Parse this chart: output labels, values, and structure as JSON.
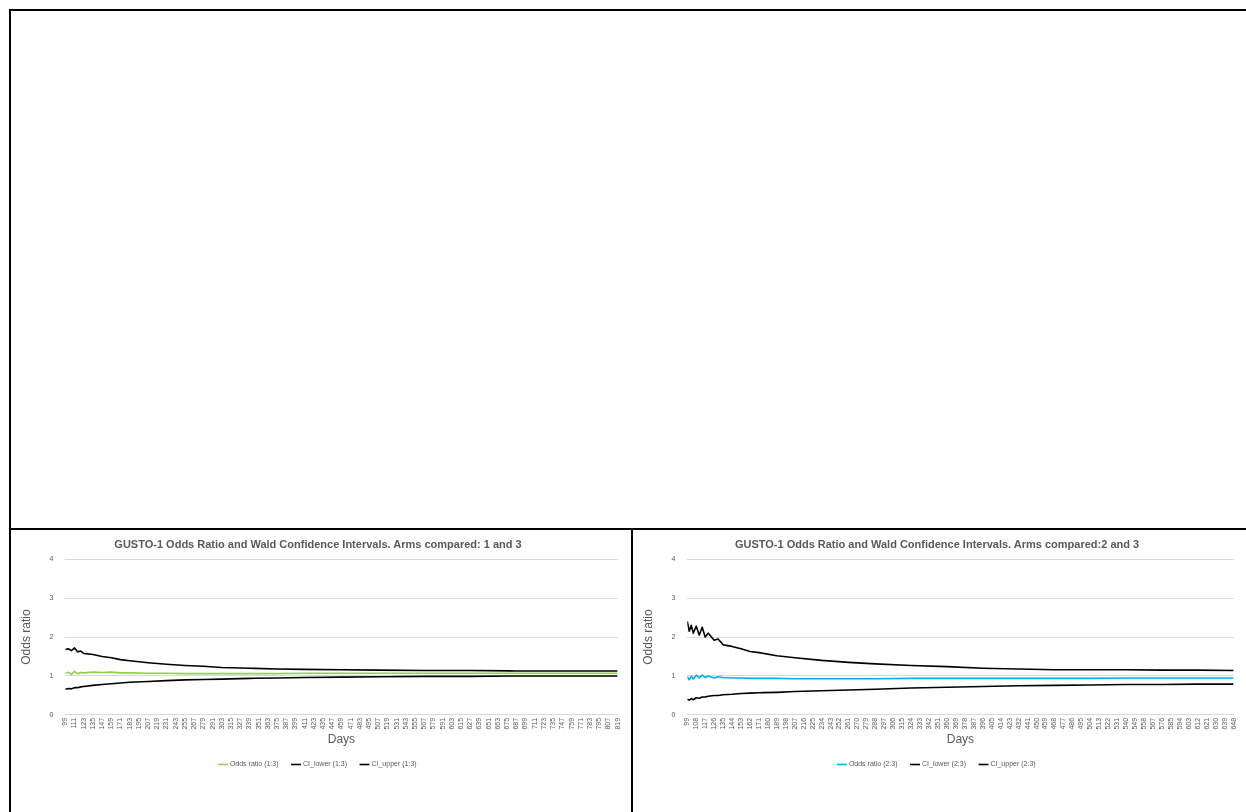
{
  "chart_data": [
    {
      "type": "line",
      "title": "GUSTO-1 Odds Ratio and Wald Confidence Intervals. Arms compared: 1 and 3",
      "xlabel": "Days",
      "ylabel": "Odds ratio",
      "grid": "y",
      "legend": "bottom",
      "marker": "none",
      "ylim": [
        0,
        4
      ],
      "yticks": [
        0,
        1,
        2,
        3,
        4
      ],
      "xlim": [
        99,
        819
      ],
      "xticks": [
        99,
        111,
        123,
        135,
        147,
        159,
        171,
        183,
        195,
        207,
        219,
        231,
        243,
        255,
        267,
        279,
        291,
        303,
        315,
        327,
        339,
        351,
        363,
        375,
        387,
        399,
        411,
        423,
        435,
        447,
        459,
        471,
        483,
        495,
        507,
        519,
        531,
        543,
        555,
        567,
        579,
        591,
        603,
        615,
        627,
        639,
        651,
        663,
        675,
        687,
        699,
        711,
        723,
        735,
        747,
        759,
        771,
        783,
        795,
        807,
        819
      ],
      "x": [
        99,
        103,
        107,
        111,
        115,
        119,
        123,
        135,
        147,
        159,
        171,
        183,
        207,
        231,
        255,
        279,
        303,
        339,
        375,
        411,
        459,
        507,
        567,
        627,
        687,
        747,
        819
      ],
      "series": [
        {
          "name": "Odds ratio (1:3)",
          "color": "#92d050",
          "values": [
            1.06,
            1.1,
            1.04,
            1.12,
            1.06,
            1.09,
            1.08,
            1.1,
            1.09,
            1.1,
            1.08,
            1.08,
            1.07,
            1.07,
            1.06,
            1.06,
            1.06,
            1.06,
            1.06,
            1.07,
            1.07,
            1.07,
            1.07,
            1.07,
            1.07,
            1.07,
            1.07
          ]
        },
        {
          "name": "CI_lower (1:3)",
          "color": "#000000",
          "values": [
            0.66,
            0.68,
            0.67,
            0.7,
            0.7,
            0.72,
            0.73,
            0.76,
            0.78,
            0.8,
            0.82,
            0.84,
            0.86,
            0.88,
            0.9,
            0.91,
            0.92,
            0.94,
            0.95,
            0.96,
            0.97,
            0.98,
            0.99,
            0.99,
            1.0,
            1.0,
            1.0
          ]
        },
        {
          "name": "CI_upper (1:3)",
          "color": "#000000",
          "values": [
            1.68,
            1.7,
            1.65,
            1.72,
            1.62,
            1.64,
            1.58,
            1.55,
            1.5,
            1.47,
            1.42,
            1.39,
            1.34,
            1.3,
            1.27,
            1.25,
            1.22,
            1.2,
            1.18,
            1.17,
            1.16,
            1.15,
            1.14,
            1.14,
            1.13,
            1.13,
            1.13
          ]
        }
      ]
    },
    {
      "type": "line",
      "title": "GUSTO-1 Odds Ratio and Wald Confidence Intervals. Arms compared:2 and 3",
      "xlabel": "Days",
      "ylabel": "Odds ratio",
      "grid": "y",
      "legend": "bottom",
      "marker": "none",
      "ylim": [
        0,
        4
      ],
      "yticks": [
        0,
        1,
        2,
        3,
        4
      ],
      "xlim": [
        99,
        648
      ],
      "xticks": [
        99,
        108,
        117,
        126,
        135,
        144,
        153,
        162,
        171,
        180,
        189,
        198,
        207,
        216,
        225,
        234,
        243,
        252,
        261,
        270,
        279,
        288,
        297,
        306,
        315,
        324,
        333,
        342,
        351,
        360,
        369,
        378,
        387,
        396,
        405,
        414,
        423,
        432,
        441,
        450,
        459,
        468,
        477,
        486,
        495,
        504,
        513,
        522,
        531,
        540,
        549,
        558,
        567,
        576,
        585,
        594,
        603,
        612,
        621,
        630,
        639,
        648
      ],
      "x": [
        99,
        101,
        103,
        105,
        108,
        111,
        114,
        117,
        120,
        126,
        130,
        135,
        144,
        153,
        162,
        171,
        189,
        207,
        234,
        261,
        288,
        324,
        360,
        396,
        432,
        468,
        504,
        540,
        576,
        612,
        648
      ],
      "series": [
        {
          "name": "Odds ratio (2:3)",
          "color": "#00b0f0",
          "values": [
            0.98,
            0.9,
            1.0,
            0.92,
            1.02,
            0.95,
            1.02,
            0.96,
            1.0,
            0.95,
            0.98,
            0.96,
            0.95,
            0.95,
            0.94,
            0.94,
            0.94,
            0.93,
            0.93,
            0.93,
            0.93,
            0.94,
            0.94,
            0.94,
            0.94,
            0.94,
            0.94,
            0.95,
            0.95,
            0.95,
            0.95
          ]
        },
        {
          "name": "CI_lower (2:3)",
          "color": "#000000",
          "values": [
            0.4,
            0.38,
            0.42,
            0.39,
            0.44,
            0.43,
            0.46,
            0.46,
            0.48,
            0.5,
            0.5,
            0.52,
            0.53,
            0.55,
            0.56,
            0.57,
            0.58,
            0.6,
            0.62,
            0.64,
            0.66,
            0.69,
            0.71,
            0.73,
            0.75,
            0.76,
            0.77,
            0.78,
            0.78,
            0.79,
            0.79
          ]
        },
        {
          "name": "CI_upper (2:3)",
          "color": "#000000",
          "values": [
            2.4,
            2.15,
            2.3,
            2.1,
            2.28,
            2.05,
            2.25,
            2.0,
            2.1,
            1.92,
            1.95,
            1.8,
            1.76,
            1.7,
            1.63,
            1.6,
            1.52,
            1.47,
            1.4,
            1.35,
            1.31,
            1.27,
            1.24,
            1.2,
            1.18,
            1.16,
            1.16,
            1.16,
            1.15,
            1.15,
            1.14
          ]
        }
      ]
    }
  ]
}
